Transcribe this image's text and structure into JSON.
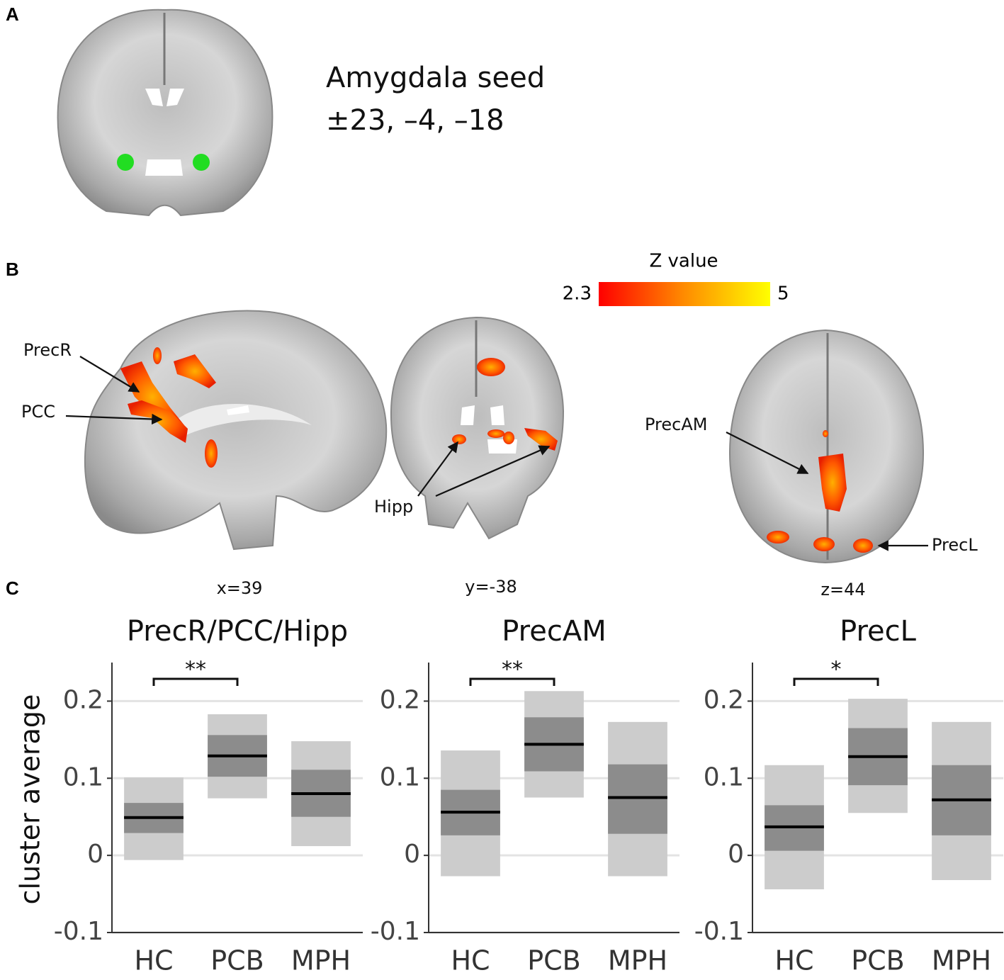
{
  "panels": [
    {
      "letter": "A",
      "seed_name": "Amygdala seed",
      "seed_coords": "±23, –4, –18"
    },
    {
      "letter": "B",
      "colorbar": {
        "label": "Z value",
        "min": 2.3,
        "max": 5,
        "colors": [
          "#ff0000",
          "#ff8c00",
          "#ffff00"
        ]
      },
      "labels": [
        "PrecR",
        "PCC",
        "Hipp",
        "PrecAM",
        "PrecL"
      ],
      "slices": [
        "x=39",
        "y=-38",
        "z=44"
      ]
    },
    {
      "letter": "C"
    }
  ],
  "chart_data": [
    {
      "type": "crossbar",
      "title": "PrecR/PCC/Hipp",
      "ylabel": "cluster average",
      "categories": [
        "HC",
        "PCB",
        "MPH"
      ],
      "values": [
        0.049,
        0.129,
        0.08
      ],
      "inner": [
        [
          0.029,
          0.068
        ],
        [
          0.102,
          0.156
        ],
        [
          0.05,
          0.111
        ]
      ],
      "outer": [
        [
          -0.006,
          0.101
        ],
        [
          0.074,
          0.183
        ],
        [
          0.012,
          0.148
        ]
      ],
      "colors": {
        "outer": "#cccccc",
        "inner": "#8c8c8c",
        "line": "#000000"
      },
      "ylim": [
        -0.1,
        0.25
      ],
      "yticks": [
        -0.1,
        0,
        0.1,
        0.2
      ],
      "grid": true,
      "significance": [
        {
          "from": "HC",
          "to": "PCB",
          "label": "**"
        }
      ]
    },
    {
      "type": "crossbar",
      "title": "PrecAM",
      "categories": [
        "HC",
        "PCB",
        "MPH"
      ],
      "values": [
        0.056,
        0.144,
        0.075
      ],
      "inner": [
        [
          0.026,
          0.085
        ],
        [
          0.109,
          0.179
        ],
        [
          0.028,
          0.118
        ]
      ],
      "outer": [
        [
          -0.027,
          0.136
        ],
        [
          0.075,
          0.213
        ],
        [
          -0.027,
          0.173
        ]
      ],
      "colors": {
        "outer": "#cccccc",
        "inner": "#8c8c8c",
        "line": "#000000"
      },
      "ylim": [
        -0.1,
        0.25
      ],
      "yticks": [
        -0.1,
        0,
        0.1,
        0.2
      ],
      "grid": true,
      "significance": [
        {
          "from": "HC",
          "to": "PCB",
          "label": "**"
        }
      ]
    },
    {
      "type": "crossbar",
      "title": "PrecL",
      "categories": [
        "HC",
        "PCB",
        "MPH"
      ],
      "values": [
        0.037,
        0.128,
        0.072
      ],
      "inner": [
        [
          0.006,
          0.065
        ],
        [
          0.091,
          0.165
        ],
        [
          0.026,
          0.117
        ]
      ],
      "outer": [
        [
          -0.044,
          0.117
        ],
        [
          0.055,
          0.203
        ],
        [
          -0.032,
          0.173
        ]
      ],
      "colors": {
        "outer": "#cccccc",
        "inner": "#8c8c8c",
        "line": "#000000"
      },
      "ylim": [
        -0.1,
        0.25
      ],
      "yticks": [
        -0.1,
        0,
        0.1,
        0.2
      ],
      "grid": true,
      "significance": [
        {
          "from": "HC",
          "to": "PCB",
          "label": "*"
        }
      ]
    }
  ]
}
